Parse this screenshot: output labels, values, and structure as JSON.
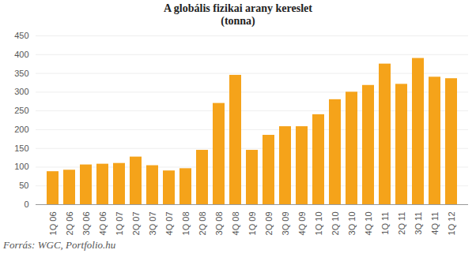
{
  "chart_data": {
    "type": "bar",
    "title": "A globális fizikai arany kereslet",
    "subtitle": "(tonna)",
    "caption": "Forrás: WGC, Portfolio.hu",
    "categories": [
      "1Q 06",
      "2Q 06",
      "3Q 06",
      "4Q 06",
      "1Q 07",
      "2Q 07",
      "3Q 07",
      "4Q 07",
      "1Q 08",
      "2Q 08",
      "3Q 08",
      "4Q 08",
      "1Q 09",
      "2Q 09",
      "3Q 09",
      "4Q 09",
      "1Q 10",
      "2Q 10",
      "3Q 10",
      "4Q 10",
      "1Q 11",
      "2Q 11",
      "3Q 11",
      "4Q 11",
      "1Q 12"
    ],
    "values": [
      88,
      92,
      106,
      108,
      110,
      127,
      104,
      90,
      96,
      145,
      270,
      345,
      145,
      185,
      208,
      208,
      240,
      280,
      300,
      318,
      375,
      321,
      390,
      340,
      336
    ],
    "color": "#f5a31a",
    "ylim": [
      0,
      450
    ],
    "yticks": [
      0,
      50,
      100,
      150,
      200,
      250,
      300,
      350,
      400,
      450
    ],
    "grid": true
  }
}
